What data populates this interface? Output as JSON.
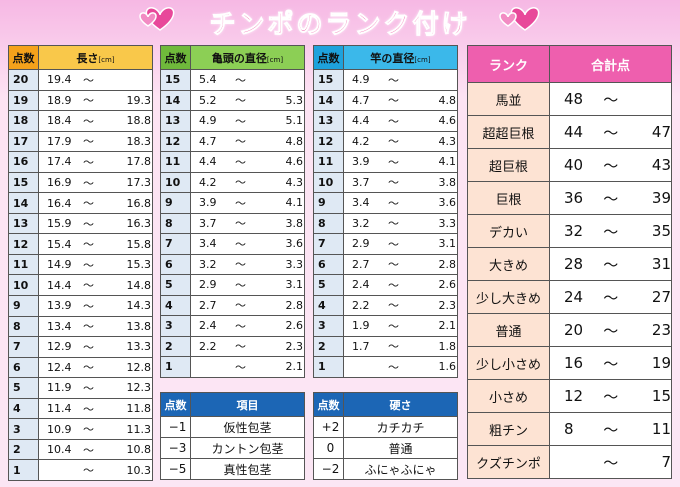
{
  "title": "チンポのランク付け",
  "tables": [
    {
      "headers": [
        "点数",
        "長さ"
      ],
      "unit": "[cm]",
      "rows": [
        [
          "20",
          "19.4",
          "～",
          null
        ],
        [
          "19",
          "18.9",
          "～",
          "19.3"
        ],
        [
          "18",
          "18.4",
          "～",
          "18.8"
        ],
        [
          "17",
          "17.9",
          "～",
          "18.3"
        ],
        [
          "16",
          "17.4",
          "～",
          "17.8"
        ],
        [
          "15",
          "16.9",
          "～",
          "17.3"
        ],
        [
          "14",
          "16.4",
          "～",
          "16.8"
        ],
        [
          "13",
          "15.9",
          "～",
          "16.3"
        ],
        [
          "12",
          "15.4",
          "～",
          "15.8"
        ],
        [
          "11",
          "14.9",
          "～",
          "15.3"
        ],
        [
          "10",
          "14.4",
          "～",
          "14.8"
        ],
        [
          "9",
          "13.9",
          "～",
          "14.3"
        ],
        [
          "8",
          "13.4",
          "～",
          "13.8"
        ],
        [
          "7",
          "12.9",
          "～",
          "13.3"
        ],
        [
          "6",
          "12.4",
          "～",
          "12.8"
        ],
        [
          "5",
          "11.9",
          "～",
          "12.3"
        ],
        [
          "4",
          "11.4",
          "～",
          "11.8"
        ],
        [
          "3",
          "10.9",
          "～",
          "11.3"
        ],
        [
          "2",
          "10.4",
          "～",
          "10.8"
        ],
        [
          "1",
          null,
          "～",
          "10.3"
        ]
      ]
    },
    {
      "headers": [
        "点数",
        "亀頭の直径"
      ],
      "unit": "[cm]",
      "rows": [
        [
          "15",
          "5.4",
          "～",
          null
        ],
        [
          "14",
          "5.2",
          "～",
          "5.3"
        ],
        [
          "13",
          "4.9",
          "～",
          "5.1"
        ],
        [
          "12",
          "4.7",
          "～",
          "4.8"
        ],
        [
          "11",
          "4.4",
          "～",
          "4.6"
        ],
        [
          "10",
          "4.2",
          "～",
          "4.3"
        ],
        [
          "9",
          "3.9",
          "～",
          "4.1"
        ],
        [
          "8",
          "3.7",
          "～",
          "3.8"
        ],
        [
          "7",
          "3.4",
          "～",
          "3.6"
        ],
        [
          "6",
          "3.2",
          "～",
          "3.3"
        ],
        [
          "5",
          "2.9",
          "～",
          "3.1"
        ],
        [
          "4",
          "2.7",
          "～",
          "2.8"
        ],
        [
          "3",
          "2.4",
          "～",
          "2.6"
        ],
        [
          "2",
          "2.2",
          "～",
          "2.3"
        ],
        [
          "1",
          null,
          "～",
          "2.1"
        ]
      ]
    },
    {
      "headers": [
        "点数",
        "竿の直径"
      ],
      "unit": "[cm]",
      "rows": [
        [
          "15",
          "4.9",
          "～",
          null
        ],
        [
          "14",
          "4.7",
          "～",
          "4.8"
        ],
        [
          "13",
          "4.4",
          "～",
          "4.6"
        ],
        [
          "12",
          "4.2",
          "～",
          "4.3"
        ],
        [
          "11",
          "3.9",
          "～",
          "4.1"
        ],
        [
          "10",
          "3.7",
          "～",
          "3.8"
        ],
        [
          "9",
          "3.4",
          "～",
          "3.6"
        ],
        [
          "8",
          "3.2",
          "～",
          "3.3"
        ],
        [
          "7",
          "2.9",
          "～",
          "3.1"
        ],
        [
          "6",
          "2.7",
          "～",
          "2.8"
        ],
        [
          "5",
          "2.4",
          "～",
          "2.6"
        ],
        [
          "4",
          "2.2",
          "～",
          "2.3"
        ],
        [
          "3",
          "1.9",
          "～",
          "2.1"
        ],
        [
          "2",
          "1.7",
          "～",
          "1.8"
        ],
        [
          "1",
          null,
          "～",
          "1.6"
        ]
      ]
    },
    {
      "headers": [
        "点数",
        "項目"
      ],
      "rows": [
        [
          "−1",
          "仮性包茎"
        ],
        [
          "−3",
          "カントン包茎"
        ],
        [
          "−5",
          "真性包茎"
        ]
      ]
    },
    {
      "headers": [
        "点数",
        "硬さ"
      ],
      "rows": [
        [
          "+2",
          "カチカチ"
        ],
        [
          "0",
          "普通"
        ],
        [
          "−2",
          "ふにゃふにゃ"
        ]
      ]
    },
    {
      "headers": [
        "ランク",
        "合計点"
      ],
      "rows": [
        [
          "馬並",
          "48",
          "～",
          null
        ],
        [
          "超超巨根",
          "44",
          "～",
          "47"
        ],
        [
          "超巨根",
          "40",
          "～",
          "43"
        ],
        [
          "巨根",
          "36",
          "～",
          "39"
        ],
        [
          "デカい",
          "32",
          "～",
          "35"
        ],
        [
          "大きめ",
          "28",
          "～",
          "31"
        ],
        [
          "少し大きめ",
          "24",
          "～",
          "27"
        ],
        [
          "普通",
          "20",
          "～",
          "23"
        ],
        [
          "少し小さめ",
          "16",
          "～",
          "19"
        ],
        [
          "小さめ",
          "12",
          "～",
          "15"
        ],
        [
          "粗チン",
          "8",
          "～",
          "11"
        ],
        [
          "クズチンポ",
          null,
          "～",
          "7"
        ]
      ]
    }
  ]
}
